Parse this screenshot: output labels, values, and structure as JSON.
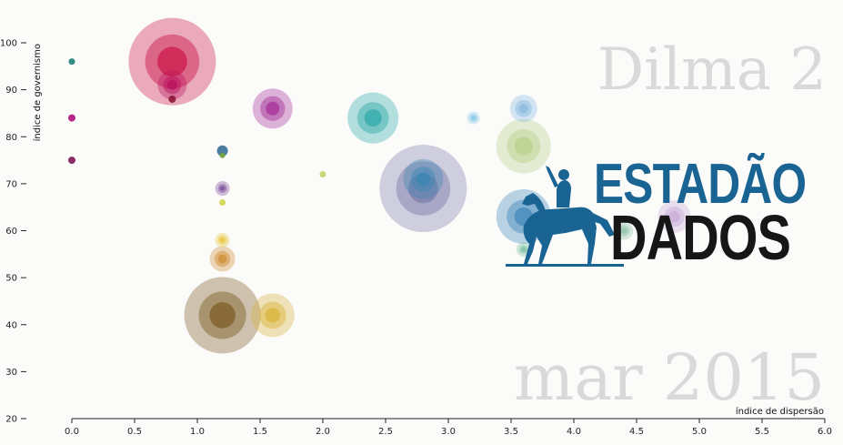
{
  "background_text": {
    "title": "Dilma 2",
    "date": "mar 2015"
  },
  "logo": {
    "line1": "ESTADÃO",
    "line2": "DADOS"
  },
  "chart_data": {
    "type": "scatter",
    "title": "",
    "xlabel": "índice de dispersão",
    "ylabel": "índice de governismo",
    "xlim": [
      0.0,
      6.0
    ],
    "ylim": [
      20,
      100
    ],
    "x_ticks": [
      "0.0",
      "0.5",
      "1.0",
      "1.5",
      "2.0",
      "2.5",
      "3.0",
      "3.5",
      "4.0",
      "4.5",
      "5.0",
      "5.5",
      "6.0"
    ],
    "y_ticks": [
      "20",
      "30",
      "40",
      "50",
      "60",
      "70",
      "80",
      "90",
      "100"
    ],
    "grid": false,
    "points": [
      {
        "x": 0.0,
        "y": 96,
        "r": 3.5,
        "color": "#1d7f73"
      },
      {
        "x": 0.0,
        "y": 84,
        "r": 4,
        "color": "#b0127a"
      },
      {
        "x": 0.0,
        "y": 75,
        "r": 4,
        "color": "#7b1658"
      },
      {
        "x": 0.8,
        "y": 96,
        "r": 48,
        "color": "#cc1548"
      },
      {
        "x": 0.8,
        "y": 91,
        "r": 16,
        "color": "#b70f5b"
      },
      {
        "x": 0.8,
        "y": 88,
        "r": 4,
        "color": "#8a1635"
      },
      {
        "x": 1.2,
        "y": 77,
        "r": 6,
        "color": "#3a6f96"
      },
      {
        "x": 1.2,
        "y": 76,
        "r": 3,
        "color": "#74a63a"
      },
      {
        "x": 1.2,
        "y": 69,
        "r": 8,
        "color": "#7a4b98"
      },
      {
        "x": 1.2,
        "y": 66,
        "r": 3.5,
        "color": "#d2d64a"
      },
      {
        "x": 1.2,
        "y": 58,
        "r": 8,
        "color": "#e8c63a"
      },
      {
        "x": 1.2,
        "y": 54,
        "r": 14,
        "color": "#cf8a2e"
      },
      {
        "x": 1.2,
        "y": 42,
        "r": 42,
        "color": "#7a5a22"
      },
      {
        "x": 1.6,
        "y": 86,
        "r": 22,
        "color": "#a32b97"
      },
      {
        "x": 1.6,
        "y": 42,
        "r": 24,
        "color": "#d9b338"
      },
      {
        "x": 2.0,
        "y": 72,
        "r": 3.5,
        "color": "#c4d36a"
      },
      {
        "x": 2.4,
        "y": 84,
        "r": 28,
        "color": "#2ea8a8"
      },
      {
        "x": 2.8,
        "y": 69,
        "r": 48,
        "color": "#7a7aa8"
      },
      {
        "x": 2.8,
        "y": 71,
        "r": 22,
        "color": "#3a88b3"
      },
      {
        "x": 3.2,
        "y": 84,
        "r": 7,
        "color": "#86c7e6"
      },
      {
        "x": 3.6,
        "y": 86,
        "r": 15,
        "color": "#86b7e0"
      },
      {
        "x": 3.6,
        "y": 78,
        "r": 30,
        "color": "#b7d08a"
      },
      {
        "x": 3.6,
        "y": 63,
        "r": 30,
        "color": "#3f88b8"
      },
      {
        "x": 3.6,
        "y": 56,
        "r": 8,
        "color": "#7ac0a0"
      },
      {
        "x": 4.4,
        "y": 60,
        "r": 10,
        "color": "#8fc1a8"
      },
      {
        "x": 4.8,
        "y": 63,
        "r": 18,
        "color": "#c7a9d6"
      }
    ]
  }
}
